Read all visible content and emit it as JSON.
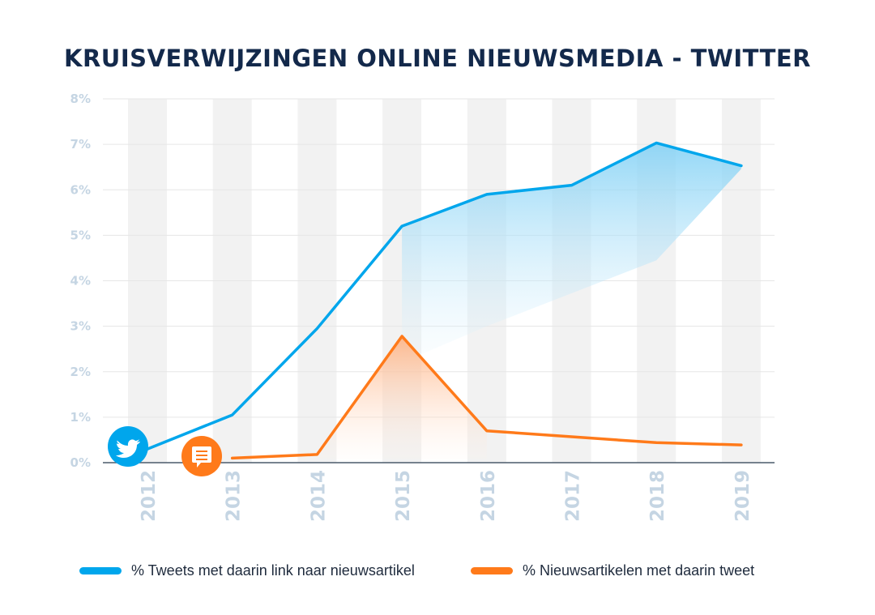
{
  "title": "KRUISVERWIJZINGEN ONLINE NIEUWSMEDIA - TWITTER",
  "icons": {
    "series1": "twitter-bird-icon",
    "series2": "news-article-speech-bubble-icon"
  },
  "colors": {
    "series1": "#00a6ec",
    "series2": "#ff7a1a",
    "title": "#13294b",
    "tick": "#c5d5e3",
    "column_band": "#f2f2f2",
    "grid": "#e6e6e6",
    "axis": "#4a5a6a"
  },
  "chart_data": {
    "type": "line",
    "title": "KRUISVERWIJZINGEN ONLINE NIEUWSMEDIA - TWITTER",
    "x": [
      "2012",
      "2013",
      "2014",
      "2015",
      "2016",
      "2017",
      "2018",
      "2019"
    ],
    "y_ticks": [
      "0%",
      "1%",
      "2%",
      "3%",
      "4%",
      "5%",
      "6%",
      "7%",
      "8%"
    ],
    "ylim": [
      0,
      8
    ],
    "grid": true,
    "legend_position": "bottom",
    "series": [
      {
        "name": "% Tweets met daarin link naar nieuwsartikel",
        "x": [
          "2012",
          "2013",
          "2014",
          "2015",
          "2016",
          "2017",
          "2018",
          "2019"
        ],
        "values": [
          0.3,
          1.05,
          2.95,
          5.2,
          5.9,
          6.1,
          7.03,
          6.53
        ]
      },
      {
        "name": "% Nieuwsartikelen met daarin tweet",
        "x": [
          "2013",
          "2014",
          "2015",
          "2016",
          "2017",
          "2018",
          "2019"
        ],
        "values": [
          0.1,
          0.18,
          2.78,
          0.7,
          0.57,
          0.44,
          0.39
        ]
      }
    ]
  }
}
